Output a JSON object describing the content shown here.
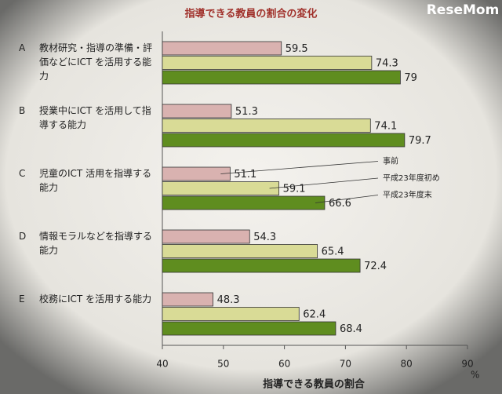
{
  "chart_data": {
    "type": "hbar",
    "title": "指導できる教員の割合の変化",
    "watermark": "ReseMom",
    "category_letters": [
      "A",
      "B",
      "C",
      "D",
      "E"
    ],
    "categories": [
      "教材研究・指導の準備・評価などにICT を活用する能力",
      "授業中にICT を活用して指導する能力",
      "児童のICT 活用を指導する能力",
      "情報モラルなどを指導する能力",
      "校務にICT を活用する能力"
    ],
    "series": [
      {
        "name": "事前",
        "color": "#d9b2b0",
        "values": [
          59.5,
          51.3,
          51.1,
          54.3,
          48.3
        ]
      },
      {
        "name": "平成23年度初め",
        "color": "#d9db96",
        "values": [
          74.3,
          74.1,
          59.1,
          65.4,
          62.4
        ]
      },
      {
        "name": "平成23年度末",
        "color": "#5f8d1f",
        "values": [
          79.0,
          79.7,
          66.6,
          72.4,
          68.4
        ]
      }
    ],
    "legend_category": 2,
    "xlim": [
      40,
      90
    ],
    "xticks": [
      40,
      50,
      60,
      70,
      80,
      90
    ],
    "x_unit": "%",
    "xlabel": "指導できる教員の割合",
    "grid": false
  }
}
